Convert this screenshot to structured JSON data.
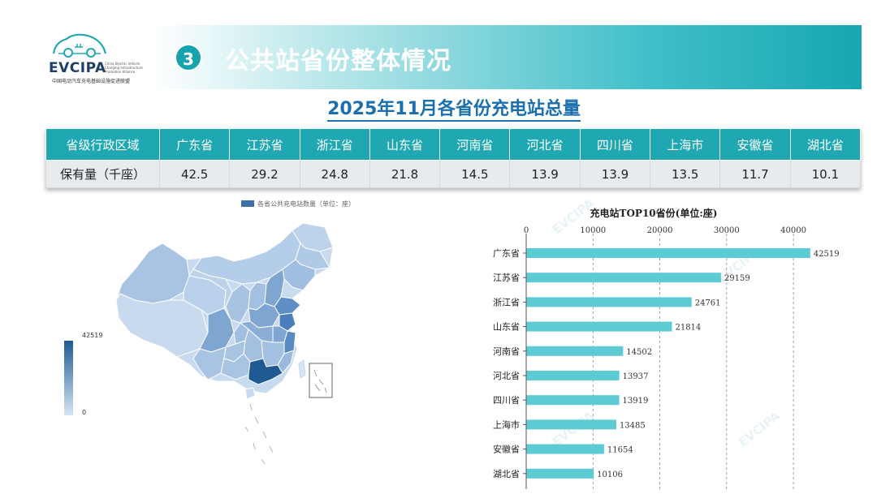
{
  "logo": {
    "brand": "EVCIPA",
    "tagline": "China Electric Vehicle Charging Infrastructure Promotion Alliance",
    "cn_name": "中国电动汽车充电基础设施促进联盟"
  },
  "section": {
    "number": "3",
    "title": "公共站省份整体情况"
  },
  "main_title": "2025年11月各省份充电站总量",
  "table": {
    "header_label": "省级行政区域",
    "row_label": "保有量（千座）",
    "provinces": [
      "广东省",
      "江苏省",
      "浙江省",
      "山东省",
      "河南省",
      "河北省",
      "四川省",
      "上海市",
      "安徽省",
      "湖北省"
    ],
    "values": [
      "42.5",
      "29.2",
      "24.8",
      "21.8",
      "14.5",
      "13.9",
      "13.9",
      "13.5",
      "11.7",
      "10.1"
    ]
  },
  "map": {
    "legend_label": "各省公共充电站数量（单位：座）",
    "visual_max": "42519",
    "visual_min": "0",
    "colors": {
      "high": "#1f5a93",
      "low": "#d6e5f3"
    }
  },
  "watermark": "EVCIPA",
  "chart_data": {
    "type": "bar",
    "orientation": "horizontal",
    "title": "充电站TOP10省份(单位:座)",
    "categories": [
      "广东省",
      "江苏省",
      "浙江省",
      "山东省",
      "河南省",
      "河北省",
      "四川省",
      "上海市",
      "安徽省",
      "湖北省"
    ],
    "values": [
      42519,
      29159,
      24761,
      21814,
      14502,
      13937,
      13919,
      13485,
      11654,
      10106
    ],
    "xlim": [
      0,
      44000
    ],
    "xticks": [
      "0",
      "10000",
      "20000",
      "30000",
      "40000"
    ],
    "xtick_values": [
      0,
      10000,
      20000,
      30000,
      40000
    ],
    "axis_position": "top",
    "grid": "vertical-dashed",
    "bar_color": "#5ccbd4"
  }
}
